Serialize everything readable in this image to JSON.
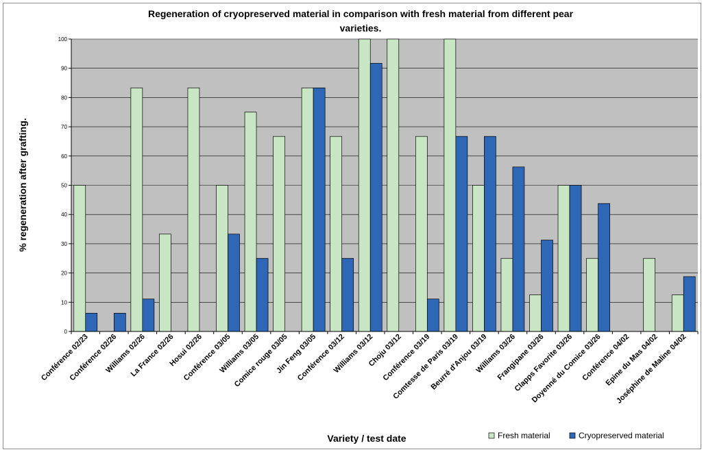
{
  "colors": {
    "fresh": "#c8e6c3",
    "cryo": "#2e67b6",
    "plot_bg": "#c0c0c0",
    "grid": "#000000",
    "bar_edge": "#000000"
  },
  "chart_data": {
    "type": "bar",
    "title_line1": "Regeneration of cryopreserved material in comparison with fresh material from different pear",
    "title_line2": "varieties.",
    "xlabel": "Variety / test date",
    "ylabel": "% regeneration after grafting.",
    "ylim": [
      0,
      100
    ],
    "yticks": [
      0,
      10,
      20,
      30,
      40,
      50,
      60,
      70,
      80,
      90,
      100
    ],
    "grid": true,
    "legend_position": "bottom-right",
    "categories": [
      "Conférence 02/23",
      "Conférence 02/26",
      "Williams 02/26",
      "La France 02/26",
      "Hosui 02/26",
      "Conférence 03/05",
      "Williams 03/05",
      "Comice rouge 03/05",
      "Jin Feng 03/05",
      "Conférence 03/12",
      "Williams 03/12",
      "Choju 03/12",
      "Conférence 03/19",
      "Comtesse de Paris 03/19",
      "Beurré d'Anjou 03/19",
      "Williams 03/26",
      "Frangipane 03/26",
      "Clapps Favorite 03/26",
      "Doyenné du Comice 03/26",
      "Conférence 04/02",
      "Epine du Mas 04/02",
      "Joséphine de Maline 04/02"
    ],
    "series": [
      {
        "name": "Fresh material",
        "values": [
          50,
          0,
          83.3,
          33.3,
          83.3,
          50,
          75,
          66.7,
          83.3,
          66.7,
          100,
          100,
          66.7,
          100,
          50,
          25,
          12.5,
          50,
          25,
          0,
          25,
          12.5
        ]
      },
      {
        "name": "Cryopreserved material",
        "values": [
          6.25,
          6.25,
          11.1,
          0,
          0,
          33.3,
          25,
          0,
          83.3,
          25,
          91.7,
          0,
          11.1,
          66.7,
          66.7,
          56.25,
          31.25,
          50,
          43.75,
          0,
          0,
          18.75
        ]
      }
    ]
  }
}
